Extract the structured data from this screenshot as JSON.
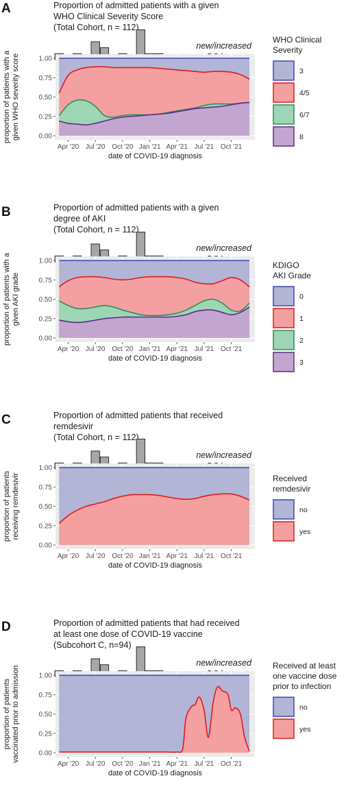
{
  "colors": {
    "purple_fill": "#c3a6d0",
    "purple_line": "#5c2a82",
    "green_fill": "#9dd6b5",
    "green_line": "#2f8a5a",
    "red_fill": "#f4a0a0",
    "red_line": "#e01919",
    "blue_fill": "#b3b5d6",
    "blue_line": "#3b45b0",
    "bar_fill": "#a6a6a6",
    "bar_line": "#1a1a1a"
  },
  "shared": {
    "x_axis_label": "date of COVID-19 diagnosis",
    "x_ticks": [
      "Apr '20",
      "Jul '20",
      "Oct '20",
      "Jan '21",
      "Apr '21",
      "Jul '21",
      "Oct '21"
    ],
    "y_ticks": [
      "0.00",
      "0.25",
      "0.50",
      "0.75",
      "1.00"
    ],
    "dsa_label_line1": "new/increased",
    "dsa_label_line2": "DSA events"
  },
  "chart_data": [
    {
      "panel": "A",
      "type": "area",
      "title_lines": [
        "Proportion of admitted patients with a given",
        "WHO Clinical Severity Score",
        "(Total Cohort, n = 112)"
      ],
      "ylabel_lines": [
        "proportion of patients with a",
        "given WHO severity score"
      ],
      "xlabel": "date of COVID-19 diagnosis",
      "ylim": [
        0,
        1
      ],
      "legend_title_lines": [
        "WHO Clinical",
        "Severity"
      ],
      "legend_entries": [
        "3",
        "4/5",
        "6/7",
        "8"
      ],
      "x": [
        "2020-03",
        "2020-04",
        "2020-05",
        "2020-06",
        "2020-07",
        "2020-08",
        "2020-09",
        "2020-10",
        "2020-11",
        "2020-12",
        "2021-01",
        "2021-02",
        "2021-03",
        "2021-04",
        "2021-05",
        "2021-06",
        "2021-07",
        "2021-08",
        "2021-09",
        "2021-10",
        "2021-11",
        "2021-12"
      ],
      "boundaries": [
        {
          "name": "8",
          "values": [
            0.19,
            0.16,
            0.15,
            0.14,
            0.16,
            0.19,
            0.22,
            0.24,
            0.25,
            0.26,
            0.27,
            0.28,
            0.29,
            0.31,
            0.33,
            0.35,
            0.36,
            0.37,
            0.38,
            0.4,
            0.42,
            0.43
          ]
        },
        {
          "name": "6/7",
          "values": [
            0.26,
            0.4,
            0.46,
            0.45,
            0.38,
            0.26,
            0.24,
            0.26,
            0.27,
            0.27,
            0.27,
            0.28,
            0.3,
            0.32,
            0.34,
            0.36,
            0.39,
            0.41,
            0.41,
            0.41,
            0.42,
            0.43
          ]
        },
        {
          "name": "4/5",
          "values": [
            0.55,
            0.78,
            0.85,
            0.88,
            0.89,
            0.89,
            0.88,
            0.88,
            0.88,
            0.88,
            0.88,
            0.87,
            0.86,
            0.85,
            0.84,
            0.83,
            0.82,
            0.83,
            0.83,
            0.82,
            0.79,
            0.73
          ]
        },
        {
          "name": "3",
          "values": [
            1,
            1,
            1,
            1,
            1,
            1,
            1,
            1,
            1,
            1,
            1,
            1,
            1,
            1,
            1,
            1,
            1,
            1,
            1,
            1,
            1,
            1
          ]
        }
      ]
    },
    {
      "panel": "B",
      "type": "area",
      "title_lines": [
        "Proportion of admitted patients with a given",
        "degree of AKI",
        "(Total Cohort, n = 112)"
      ],
      "ylabel_lines": [
        "proportion of patients with a",
        "given AKI grade"
      ],
      "xlabel": "date of COVID-19 diagnosis",
      "ylim": [
        0,
        1
      ],
      "legend_title_lines": [
        "KDIGO",
        "AKI Grade"
      ],
      "legend_entries": [
        "0",
        "1",
        "2",
        "3"
      ],
      "x": [
        "2020-03",
        "2020-04",
        "2020-05",
        "2020-06",
        "2020-07",
        "2020-08",
        "2020-09",
        "2020-10",
        "2020-11",
        "2020-12",
        "2021-01",
        "2021-02",
        "2021-03",
        "2021-04",
        "2021-05",
        "2021-06",
        "2021-07",
        "2021-08",
        "2021-09",
        "2021-10",
        "2021-11",
        "2021-12"
      ],
      "boundaries": [
        {
          "name": "3",
          "values": [
            0.23,
            0.21,
            0.2,
            0.21,
            0.23,
            0.25,
            0.26,
            0.27,
            0.27,
            0.27,
            0.27,
            0.27,
            0.27,
            0.28,
            0.3,
            0.34,
            0.36,
            0.36,
            0.33,
            0.3,
            0.33,
            0.4
          ]
        },
        {
          "name": "2",
          "values": [
            0.48,
            0.42,
            0.38,
            0.38,
            0.4,
            0.42,
            0.4,
            0.36,
            0.33,
            0.3,
            0.29,
            0.29,
            0.3,
            0.32,
            0.36,
            0.42,
            0.48,
            0.5,
            0.45,
            0.36,
            0.35,
            0.45
          ]
        },
        {
          "name": "1",
          "values": [
            0.66,
            0.74,
            0.78,
            0.79,
            0.79,
            0.78,
            0.76,
            0.75,
            0.76,
            0.78,
            0.79,
            0.79,
            0.79,
            0.78,
            0.76,
            0.72,
            0.7,
            0.7,
            0.74,
            0.78,
            0.75,
            0.66
          ]
        },
        {
          "name": "0",
          "values": [
            1,
            1,
            1,
            1,
            1,
            1,
            1,
            1,
            1,
            1,
            1,
            1,
            1,
            1,
            1,
            1,
            1,
            1,
            1,
            1,
            1,
            1
          ]
        }
      ]
    },
    {
      "panel": "C",
      "type": "area",
      "title_lines": [
        "Proportion of admitted patients that received",
        "remdesivir",
        "(Total Cohort, n = 112)"
      ],
      "ylabel_lines": [
        "proportion of patients",
        "receiving remdesivir"
      ],
      "xlabel": "date of COVID-19 diagnosis",
      "ylim": [
        0,
        1
      ],
      "legend_title_lines": [
        "Received",
        "remdesivir"
      ],
      "legend_entries": [
        "no",
        "yes"
      ],
      "x": [
        "2020-03",
        "2020-04",
        "2020-05",
        "2020-06",
        "2020-07",
        "2020-08",
        "2020-09",
        "2020-10",
        "2020-11",
        "2020-12",
        "2021-01",
        "2021-02",
        "2021-03",
        "2021-04",
        "2021-05",
        "2021-06",
        "2021-07",
        "2021-08",
        "2021-09",
        "2021-10",
        "2021-11",
        "2021-12"
      ],
      "boundaries": [
        {
          "name": "yes",
          "values": [
            0.28,
            0.38,
            0.45,
            0.5,
            0.53,
            0.56,
            0.6,
            0.63,
            0.65,
            0.65,
            0.65,
            0.64,
            0.62,
            0.6,
            0.59,
            0.6,
            0.63,
            0.65,
            0.66,
            0.66,
            0.63,
            0.58
          ]
        },
        {
          "name": "no",
          "values": [
            1,
            1,
            1,
            1,
            1,
            1,
            1,
            1,
            1,
            1,
            1,
            1,
            1,
            1,
            1,
            1,
            1,
            1,
            1,
            1,
            1,
            1
          ]
        }
      ]
    },
    {
      "panel": "D",
      "type": "area",
      "title_lines": [
        "Proportion of admitted patients that had received",
        "at least one dose of COVID-19 vaccine",
        "(Subcohort C, n=94)"
      ],
      "ylabel_lines": [
        "proportion of patients",
        "vaccinated prior to admission"
      ],
      "xlabel": "date of COVID-19 diagnosis",
      "ylim": [
        0,
        1
      ],
      "legend_title_lines": [
        "Received at least",
        "one vaccine dose",
        "prior to infection"
      ],
      "legend_entries": [
        "no",
        "yes"
      ],
      "x": [
        "2020-03",
        "2020-04",
        "2020-05",
        "2020-06",
        "2020-07",
        "2020-08",
        "2020-09",
        "2020-10",
        "2020-11",
        "2020-12",
        "2021-01",
        "2021-02",
        "2021-03",
        "2021-04",
        "2021-04-20",
        "2021-05",
        "2021-05-20",
        "2021-06",
        "2021-06-15",
        "2021-07",
        "2021-07-15",
        "2021-08",
        "2021-08-15",
        "2021-09",
        "2021-09-20",
        "2021-10",
        "2021-10-15",
        "2021-11",
        "2021-11-15",
        "2021-12"
      ],
      "boundaries": [
        {
          "name": "yes",
          "values": [
            0.01,
            0.01,
            0.01,
            0.01,
            0.01,
            0.01,
            0.01,
            0.01,
            0.01,
            0.01,
            0.01,
            0.01,
            0.01,
            0.01,
            0.05,
            0.45,
            0.6,
            0.62,
            0.72,
            0.55,
            0.2,
            0.65,
            0.85,
            0.8,
            0.75,
            0.55,
            0.58,
            0.5,
            0.2,
            0.02
          ]
        },
        {
          "name": "no",
          "values": [
            1,
            1,
            1,
            1,
            1,
            1,
            1,
            1,
            1,
            1,
            1,
            1,
            1,
            1,
            1,
            1,
            1,
            1,
            1,
            1,
            1,
            1,
            1,
            1,
            1,
            1,
            1,
            1,
            1,
            1
          ]
        }
      ]
    }
  ],
  "dsa_histogram": {
    "type": "bar",
    "bin_starts": [
      "2020-03",
      "2020-05",
      "2020-07",
      "2020-08",
      "2020-10",
      "2020-12",
      "2021-01",
      "2021-02"
    ],
    "counts": [
      1,
      1,
      3,
      2,
      1,
      5,
      1,
      1
    ]
  }
}
